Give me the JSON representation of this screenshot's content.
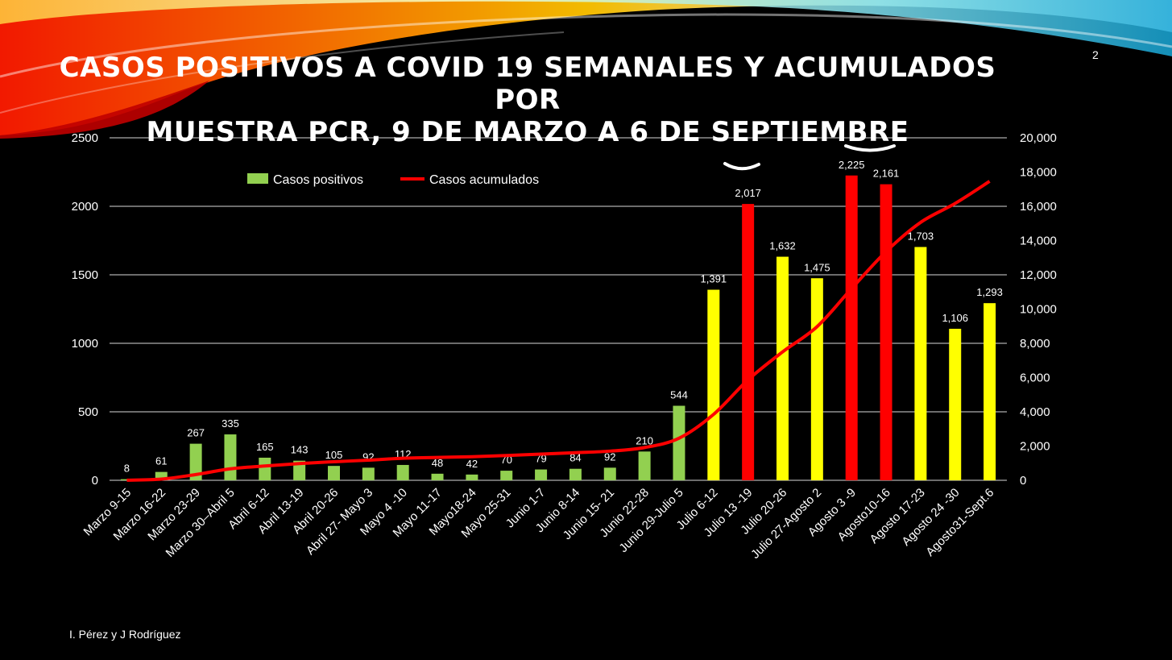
{
  "slide": {
    "title_line1": "CASOS POSITIVOS A COVID 19 SEMANALES Y ACUMULADOS POR",
    "title_line2": "MUESTRA PCR, 9 DE MARZO A 6 DE SEPTIEMBRE",
    "slide_number": "2",
    "footer": "I. Pérez y J Rodríguez"
  },
  "chart_data": {
    "type": "bar",
    "title": "",
    "categories": [
      "Marzo 9-15",
      "Marzo 16-22",
      "Marzo 23-29",
      "Marzo 30–Abril 5",
      "Abril 6-12",
      "Abril 13-19",
      "Abril 20-26",
      "Abril 27- Mayo 3",
      "Mayo 4 -10",
      "Mayo 11-17",
      "Mayo18-24",
      "Mayo 25-31",
      "Junio  1-7",
      "Junio 8-14",
      "Junio 15- 21",
      "Junio 22-28",
      "Junio  29-Julio 5",
      "Julio 6-12",
      "Julio 13 -19",
      "Julio 20-26",
      "Julio 27-Agosto 2",
      "Agosto 3 -9",
      "Agosto10-16",
      "Agosto 17-23",
      "Agosto 24 -30",
      "Agosto31-Sept.6"
    ],
    "series": [
      {
        "name": "Casos positivos",
        "type": "bar",
        "axis": "left",
        "values": [
          8,
          61,
          267,
          335,
          165,
          143,
          105,
          92,
          112,
          48,
          42,
          70,
          79,
          84,
          92,
          210,
          544,
          1391,
          2017,
          1632,
          1475,
          2225,
          2161,
          1703,
          1106,
          1293
        ],
        "labels": [
          "8",
          "61",
          "267",
          "335",
          "165",
          "143",
          "105",
          "92",
          "112",
          "48",
          "42",
          "70",
          "79",
          "84",
          "92",
          "210",
          "544",
          "1,391",
          "2,017",
          "1,632",
          "1,475",
          "2,225",
          "2,161",
          "1,703",
          "1,106",
          "1,293"
        ],
        "colors": [
          "#92d050",
          "#92d050",
          "#92d050",
          "#92d050",
          "#92d050",
          "#92d050",
          "#92d050",
          "#92d050",
          "#92d050",
          "#92d050",
          "#92d050",
          "#92d050",
          "#92d050",
          "#92d050",
          "#92d050",
          "#92d050",
          "#92d050",
          "#ffff00",
          "#ff0000",
          "#ffff00",
          "#ffff00",
          "#ff0000",
          "#ff0000",
          "#ffff00",
          "#ffff00",
          "#ffff00"
        ]
      },
      {
        "name": "Casos acumulados",
        "type": "line",
        "axis": "right",
        "color": "#ff0000",
        "values": [
          8,
          69,
          336,
          671,
          836,
          979,
          1084,
          1176,
          1288,
          1336,
          1378,
          1448,
          1527,
          1611,
          1703,
          1913,
          2457,
          3848,
          5865,
          7497,
          8972,
          11197,
          13358,
          15061,
          16167,
          17460
        ]
      }
    ],
    "y_left": {
      "min": 0,
      "max": 2500,
      "ticks": [
        "0",
        "500",
        "1000",
        "1500",
        "2000",
        "2500"
      ]
    },
    "y_right": {
      "min": 0,
      "max": 20000,
      "ticks": [
        "0",
        "2,000",
        "4,000",
        "6,000",
        "8,000",
        "10,000",
        "12,000",
        "14,000",
        "16,000",
        "18,000",
        "20,000"
      ]
    },
    "grid": true,
    "legend_position": "top-left"
  }
}
